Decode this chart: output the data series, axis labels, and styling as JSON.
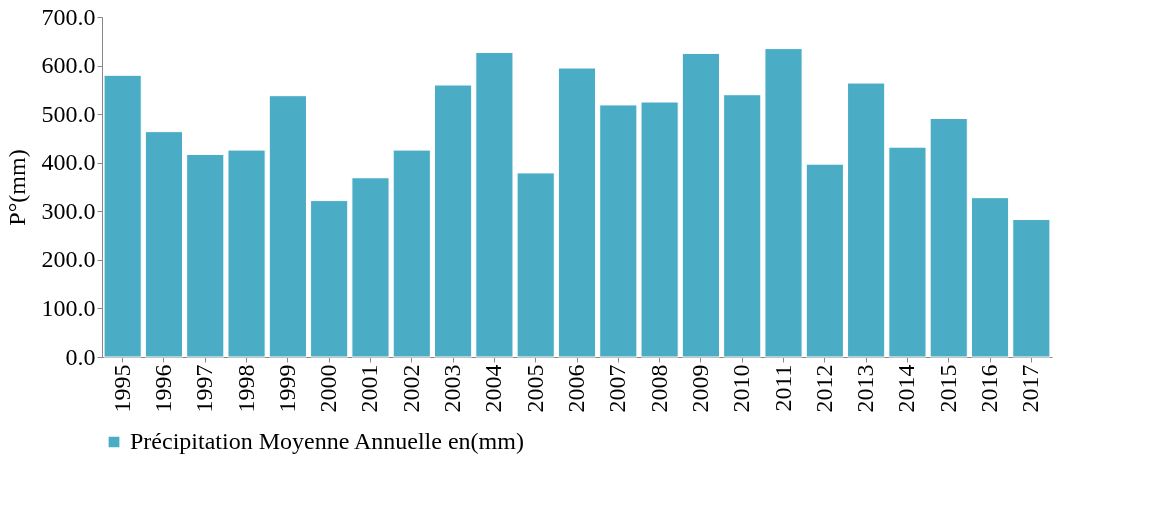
{
  "chart_data": {
    "type": "bar",
    "ylabel": "P°(mm)",
    "categories": [
      "1995",
      "1996",
      "1997",
      "1998",
      "1999",
      "2000",
      "2001",
      "2002",
      "2003",
      "2004",
      "2005",
      "2006",
      "2007",
      "2008",
      "2009",
      "2010",
      "2011",
      "2012",
      "2013",
      "2014",
      "2015",
      "2016",
      "2017"
    ],
    "series": [
      {
        "name": "Précipitation Moyenne Annuelle en(mm)",
        "color": "#4bacc6",
        "values": [
          580,
          464,
          417,
          426,
          538,
          322,
          369,
          426,
          560,
          627,
          379,
          595,
          519,
          525,
          625,
          540,
          635,
          397,
          564,
          432,
          491,
          328,
          283
        ]
      }
    ],
    "ylim": [
      0,
      700
    ],
    "yticks": [
      {
        "value": 0,
        "label": "0.0"
      },
      {
        "value": 100,
        "label": "100.0"
      },
      {
        "value": 200,
        "label": "200.0"
      },
      {
        "value": 300,
        "label": "300.0"
      },
      {
        "value": 400,
        "label": "400.0"
      },
      {
        "value": 500,
        "label": "500.0"
      },
      {
        "value": 600,
        "label": "600.0"
      },
      {
        "value": 700,
        "label": "700.0"
      }
    ],
    "grid": false,
    "legend": "bottom"
  }
}
